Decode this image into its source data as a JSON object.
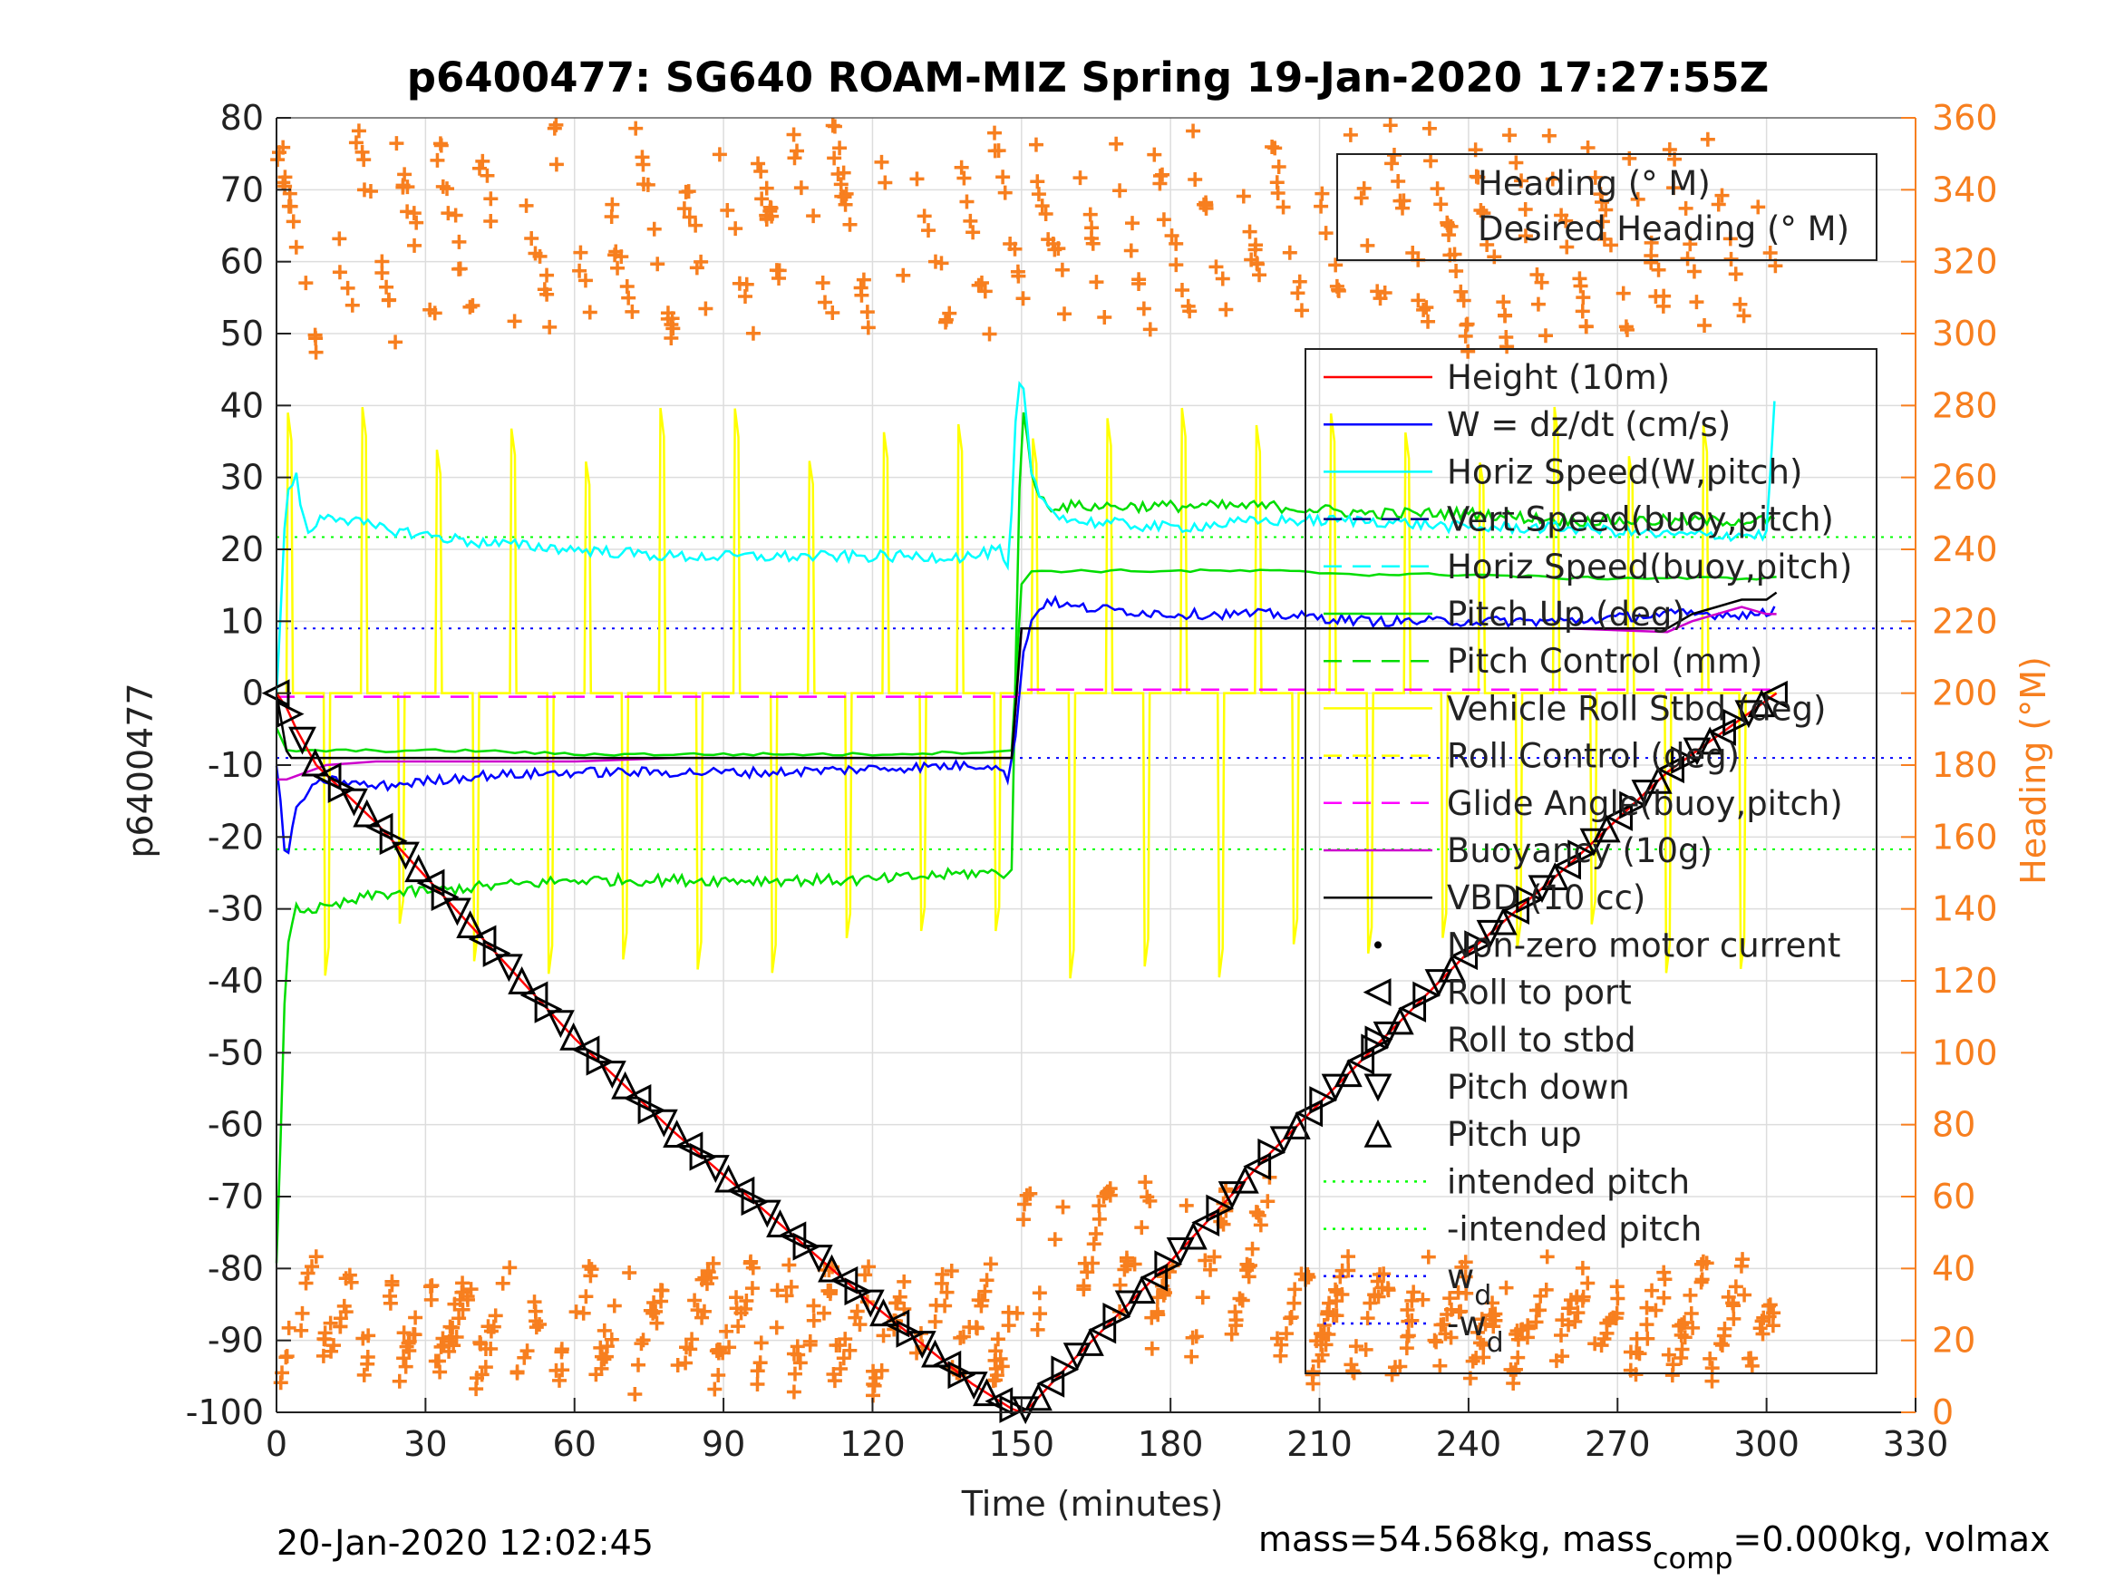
{
  "title": "p6400477: SG640 ROAM-MIZ Spring 19-Jan-2020 17:27:55Z",
  "footer_left": "20-Jan-2020 12:02:45",
  "footer_right": {
    "part1": "mass=54.568kg, mass",
    "sub": "comp",
    "part2": "=0.000kg, volmax"
  },
  "colors": {
    "height": "#ff0000",
    "w": "#0000ff",
    "horiz_speed_w": "#00ffff",
    "vert_speed_buoy": "#000080",
    "pitch_control": "#00dd00",
    "vehicle_roll": "#ffff00",
    "glide_angle": "#ff00ff",
    "buoyancy": "#cc00cc",
    "vbd": "#000000",
    "heading": "#f77f1f",
    "intended_pitch": "#00ff00",
    "wd": "#0000ff",
    "grid": "#dddddd"
  },
  "chart_data": {
    "type": "line",
    "title": "p6400477: SG640 ROAM-MIZ Spring 19-Jan-2020 17:27:55Z",
    "xlabel": "Time (minutes)",
    "ylabel_left": "p6400477",
    "ylabel_right": "Heading (°M)",
    "xlim": [
      0,
      330
    ],
    "ylim_left": [
      -100,
      80
    ],
    "ylim_right": [
      0,
      360
    ],
    "x_ticks": [
      "0",
      "30",
      "60",
      "90",
      "120",
      "150",
      "180",
      "210",
      "240",
      "270",
      "300",
      "330"
    ],
    "y_ticks_left": [
      "80",
      "70",
      "60",
      "50",
      "40",
      "30",
      "20",
      "10",
      "0",
      "-10",
      "-20",
      "-30",
      "-40",
      "-50",
      "-60",
      "-70",
      "-80",
      "-90",
      "-100"
    ],
    "y_ticks_right": [
      "360",
      "340",
      "320",
      "300",
      "280",
      "260",
      "240",
      "220",
      "200",
      "180",
      "160",
      "140",
      "120",
      "100",
      "80",
      "60",
      "40",
      "20",
      "0"
    ],
    "grid": true,
    "heading_legend": {
      "placement": "top-right",
      "entries": [
        "Heading (° M)",
        "Desired Heading (° M)"
      ]
    },
    "legend": {
      "placement": "right",
      "entries": [
        {
          "label": "Height (10m)",
          "style": "line",
          "color": "#ff0000",
          "dash": ""
        },
        {
          "label": "W = dz/dt (cm/s)",
          "style": "line",
          "color": "#0000ff",
          "dash": ""
        },
        {
          "label": "Horiz Speed(W,pitch)",
          "style": "line",
          "color": "#00ffff",
          "dash": ""
        },
        {
          "label": "Vert Speed(buoy,pitch)",
          "style": "line",
          "color": "#000080",
          "dash": "20,12"
        },
        {
          "label": "Horiz Speed(buoy,pitch)",
          "style": "line",
          "color": "#00ffff",
          "dash": "20,12"
        },
        {
          "label": "Pitch Up (deg)",
          "style": "line",
          "color": "#00dd00",
          "dash": ""
        },
        {
          "label": "Pitch Control (mm)",
          "style": "line",
          "color": "#00dd00",
          "dash": "20,12"
        },
        {
          "label": "Vehicle Roll Stbd (deg)",
          "style": "line",
          "color": "#ffff00",
          "dash": ""
        },
        {
          "label": "Roll Control (deg)",
          "style": "line",
          "color": "#ffff00",
          "dash": "20,12"
        },
        {
          "label": "Glide Angle(buoy,pitch)",
          "style": "line",
          "color": "#ff00ff",
          "dash": "20,12"
        },
        {
          "label": "Buoyancy (10g)",
          "style": "line",
          "color": "#cc00cc",
          "dash": ""
        },
        {
          "label": "VBD (10 cc)",
          "style": "line",
          "color": "#000000",
          "dash": ""
        },
        {
          "label": "Non-zero motor current",
          "style": "dot",
          "color": "#000000",
          "dash": ""
        },
        {
          "label": "Roll to port",
          "style": "tri-left",
          "color": "#000000",
          "dash": ""
        },
        {
          "label": "Roll to stbd",
          "style": "tri-right",
          "color": "#000000",
          "dash": ""
        },
        {
          "label": "Pitch down",
          "style": "tri-down",
          "color": "#000000",
          "dash": ""
        },
        {
          "label": "Pitch up",
          "style": "tri-up",
          "color": "#000000",
          "dash": ""
        },
        {
          "label": "intended pitch",
          "style": "line",
          "color": "#00ff00",
          "dash": "3,7"
        },
        {
          "label": "-intended pitch",
          "style": "line",
          "color": "#00ff00",
          "dash": "3,7"
        },
        {
          "label": "w",
          "sub": "d",
          "style": "line",
          "color": "#0000ff",
          "dash": "3,7"
        },
        {
          "label": "-w",
          "sub": "d",
          "style": "line",
          "color": "#0000ff",
          "dash": "3,7"
        }
      ]
    },
    "series": [
      {
        "name": "Height (10m)",
        "x": [
          0,
          2,
          4,
          8,
          14,
          20,
          40,
          60,
          80,
          100,
          120,
          140,
          148,
          150,
          152,
          160,
          180,
          200,
          220,
          240,
          260,
          280,
          302
        ],
        "y": [
          0,
          -2,
          -5,
          -10,
          -14,
          -18,
          -33,
          -48,
          -61,
          -73,
          -85,
          -96,
          -99.5,
          -100,
          -99,
          -93,
          -79,
          -64,
          -50,
          -36,
          -24,
          -11,
          0
        ]
      },
      {
        "name": "W = dz/dt (cm/s)",
        "x": [
          0,
          2,
          4,
          6,
          10,
          20,
          40,
          60,
          80,
          100,
          120,
          140,
          146,
          147,
          148,
          149,
          150,
          152,
          155,
          160,
          180,
          200,
          220,
          240,
          260,
          280,
          300,
          302
        ],
        "y": [
          -10,
          -24,
          -16,
          -14,
          -12,
          -13,
          -11.5,
          -11,
          -11,
          -11,
          -10.5,
          -10,
          -10,
          -13,
          -9,
          -6,
          5,
          10,
          13,
          12,
          11,
          11,
          10,
          10,
          10,
          11,
          11,
          12
        ]
      },
      {
        "name": "Horiz Speed(W,pitch)",
        "x": [
          0,
          2,
          4,
          6,
          10,
          20,
          40,
          60,
          80,
          100,
          120,
          140,
          146,
          147,
          148,
          149,
          150,
          152,
          155,
          160,
          180,
          200,
          220,
          240,
          260,
          280,
          300,
          302
        ],
        "y": [
          0,
          28,
          30,
          22,
          25,
          23,
          21,
          20,
          19,
          19,
          19,
          19,
          20,
          15,
          25,
          40,
          45,
          30,
          26,
          24,
          23,
          24,
          24,
          23,
          23,
          22,
          22,
          45
        ]
      },
      {
        "name": "Pitch Up (deg)",
        "x": [
          0,
          2,
          4,
          10,
          20,
          40,
          60,
          80,
          100,
          120,
          140,
          148,
          149,
          150,
          152,
          155,
          160,
          180,
          200,
          220,
          240,
          260,
          280,
          300,
          302
        ],
        "y": [
          -80,
          -35,
          -30,
          -30,
          -28,
          -27,
          -26,
          -26,
          -26,
          -26,
          -25,
          -25,
          10,
          42,
          30,
          26,
          26,
          26,
          26,
          25,
          25,
          24,
          24,
          24,
          24
        ]
      },
      {
        "name": "Pitch Control (mm)",
        "x": [
          0,
          2,
          4,
          10,
          20,
          40,
          60,
          80,
          100,
          120,
          140,
          148,
          150,
          152,
          160,
          180,
          200,
          220,
          240,
          260,
          280,
          300,
          302
        ],
        "y": [
          -5,
          -8,
          -8,
          -8,
          -8,
          -8,
          -8.5,
          -8.5,
          -8.5,
          -8.5,
          -8.2,
          -8,
          15,
          17,
          17,
          17,
          17,
          16.5,
          16.5,
          16,
          16,
          16,
          16
        ]
      },
      {
        "name": "Glide Angle(buoy,pitch)",
        "x": [
          0,
          148,
          149,
          150,
          302
        ],
        "y": [
          -0.5,
          -0.5,
          -0.5,
          0.5,
          0.5
        ]
      },
      {
        "name": "Buoyancy (10g)",
        "x": [
          0,
          2,
          4,
          6,
          10,
          20,
          40,
          60,
          80,
          100,
          120,
          140,
          148,
          149,
          150,
          152,
          160,
          180,
          200,
          220,
          240,
          260,
          280,
          285,
          290,
          295,
          300,
          302
        ],
        "y": [
          -12,
          -12,
          -11.5,
          -11,
          -10,
          -9.5,
          -9.5,
          -9.5,
          -9,
          -9,
          -9,
          -9,
          -9,
          -0.5,
          9,
          9,
          9,
          9,
          9,
          9,
          9,
          9,
          8.5,
          10,
          11,
          12,
          11,
          11
        ]
      },
      {
        "name": "VBD (10 cc)",
        "x": [
          0,
          2,
          3,
          4,
          10,
          20,
          40,
          60,
          80,
          100,
          120,
          140,
          148,
          150,
          152,
          160,
          180,
          200,
          220,
          240,
          260,
          280,
          285,
          290,
          295,
          300,
          302
        ],
        "y": [
          0,
          -8,
          -9,
          -9,
          -9,
          -9,
          -9,
          -9,
          -9,
          -9,
          -9,
          -9,
          -9,
          9,
          9,
          9,
          9,
          9,
          9,
          9,
          9,
          9,
          11,
          12,
          13,
          13,
          14
        ]
      },
      {
        "name": "Vehicle Roll Stbd (deg)",
        "envelope": [
          -40,
          40
        ],
        "baseline": 0
      }
    ],
    "reference_lines": [
      {
        "name": "intended pitch",
        "y": 21.7
      },
      {
        "name": "-intended pitch",
        "y": -21.7
      },
      {
        "name": "w_d",
        "y": 9
      },
      {
        "name": "-w_d",
        "y": -9
      }
    ],
    "heading_description": "Heading (°M) scattered on right axis, cycling between ~300-360 and ~0-60 throughout the dive"
  }
}
